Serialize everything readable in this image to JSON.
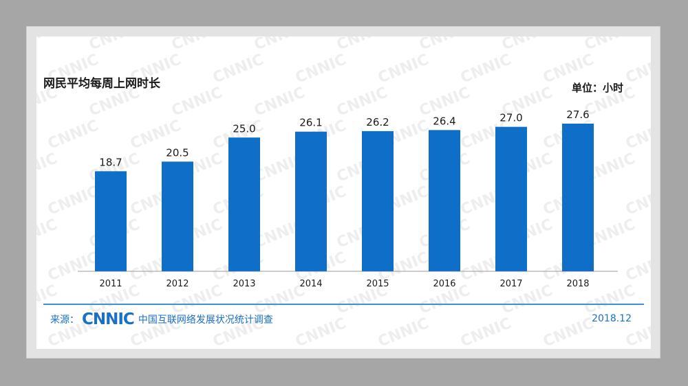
{
  "chart_data": {
    "type": "bar",
    "title": "网民平均每周上网时长",
    "unit_label": "单位：小时",
    "categories": [
      "2011",
      "2012",
      "2013",
      "2014",
      "2015",
      "2016",
      "2017",
      "2018"
    ],
    "values": [
      18.7,
      20.5,
      25.0,
      26.1,
      26.2,
      26.4,
      27.0,
      27.6
    ],
    "value_labels": [
      "18.7",
      "20.5",
      "25.0",
      "26.1",
      "26.2",
      "26.4",
      "27.0",
      "27.6"
    ],
    "ylim": [
      0,
      27.6
    ],
    "grid": false,
    "bar_color": "#0e6ec8",
    "axis_color": "#9a9a9a",
    "label_color": "#1a1a1a"
  },
  "footer": {
    "source_label": "来源：",
    "logo_text": "CNNIC",
    "source_org": "中国互联网络发展状况统计调查",
    "date": "2018.12"
  },
  "watermark_text": "CNNIC",
  "colors": {
    "page_background": "#a6a6a6",
    "accent_blue": "#1a6fc9",
    "footer_line": "#3d8fd6"
  }
}
